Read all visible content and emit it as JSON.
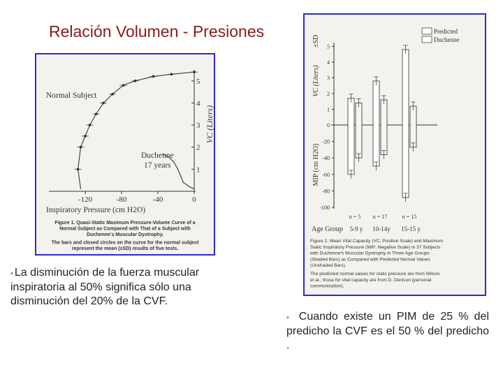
{
  "slide": {
    "title": "Relación Volumen - Presiones",
    "bullet_left": "La disminución de la fuerza muscular inspiratoria al 50% significa sólo una disminución del 20% de la CVF.",
    "bullet_right": "Cuando existe un PIM de 25 % del predicho la CVF es el 50 % del predicho ."
  },
  "chart_data": [
    {
      "type": "line",
      "xlabel": "Inspiratory Pressure (cm H2O)",
      "ylabel": "VC (Liters)",
      "xticks": [
        "-120",
        "-80",
        "-40",
        "0"
      ],
      "yticks": [
        "1",
        "2",
        "3",
        "4",
        "5"
      ],
      "xlim": [
        -140,
        0
      ],
      "ylim": [
        0,
        5.5
      ],
      "annotations": [
        "Normal Subject",
        "Duchenne",
        "17 years"
      ],
      "series": [
        {
          "name": "Normal Subject",
          "points": [
            [
              -125,
              0.1
            ],
            [
              -128,
              1.0
            ],
            [
              -125,
              2.0
            ],
            [
              -120,
              2.5
            ],
            [
              -115,
              3.0
            ],
            [
              -108,
              3.5
            ],
            [
              -100,
              4.0
            ],
            [
              -90,
              4.4
            ],
            [
              -78,
              4.8
            ],
            [
              -65,
              5.0
            ],
            [
              -45,
              5.2
            ],
            [
              -25,
              5.3
            ],
            [
              0,
              5.4
            ]
          ]
        },
        {
          "name": "Duchenne",
          "points": [
            [
              0,
              0.1
            ],
            [
              -5,
              0.2
            ],
            [
              -12,
              0.4
            ],
            [
              -15,
              0.7
            ],
            [
              -18,
              1.0
            ],
            [
              -22,
              1.3
            ],
            [
              -28,
              1.55
            ],
            [
              -35,
              1.7
            ]
          ]
        }
      ],
      "caption": [
        "Figure 1. Quasi-Static Maximum Pressure-Volume Curve of a",
        "Normal Subject as Compared with That of a Subject with",
        "Duchenne's Muscular Dystrophy.",
        "The bars and closed circles on the curve for the normal subject",
        "represent the mean (±SD) results of five tests."
      ]
    },
    {
      "type": "bar",
      "categories": [
        "5-9 y",
        "10-14y",
        "15-15 y"
      ],
      "n_labels": [
        "n = 5",
        "n = 17",
        "n = 15"
      ],
      "category_axis_label": "Age Group",
      "legend": [
        "Predicted",
        "Duchenne"
      ],
      "legend_position": "top-right",
      "yticks_vc": [
        "1",
        "2",
        "3",
        "4",
        "5"
      ],
      "yticks_mip": [
        "0",
        "-20",
        "-40",
        "-60",
        "-80",
        "-100"
      ],
      "ylabel_vc": "VC (Liters)",
      "ylabel_sd": "±SD",
      "ylabel_mip": "MIP (cm H2O)",
      "series": [
        {
          "name": "Predicted",
          "vc": [
            1.7,
            2.8,
            4.8
          ],
          "mip": [
            -60,
            -50,
            -88
          ]
        },
        {
          "name": "Duchenne",
          "vc": [
            1.4,
            1.6,
            1.2
          ],
          "mip": [
            -40,
            -36,
            -27
          ]
        }
      ],
      "caption": [
        "Figure 2. Mean Vital Capacity (VC; Positive Scale) and Maximum",
        "Static Inspiratory Pressure (MIP; Negative Scale) in 37 Subjects",
        "with Duchenne's Muscular Dystrophy in Three Age Groups",
        "(Shaded Bars) as Compared with Predicted Normal Values",
        "(Unshaded Bars).",
        "The predicted normal values for static pressure are from Wilson",
        "et al.; those for vital capacity are from D. Denison (personal",
        "communication)."
      ]
    }
  ]
}
